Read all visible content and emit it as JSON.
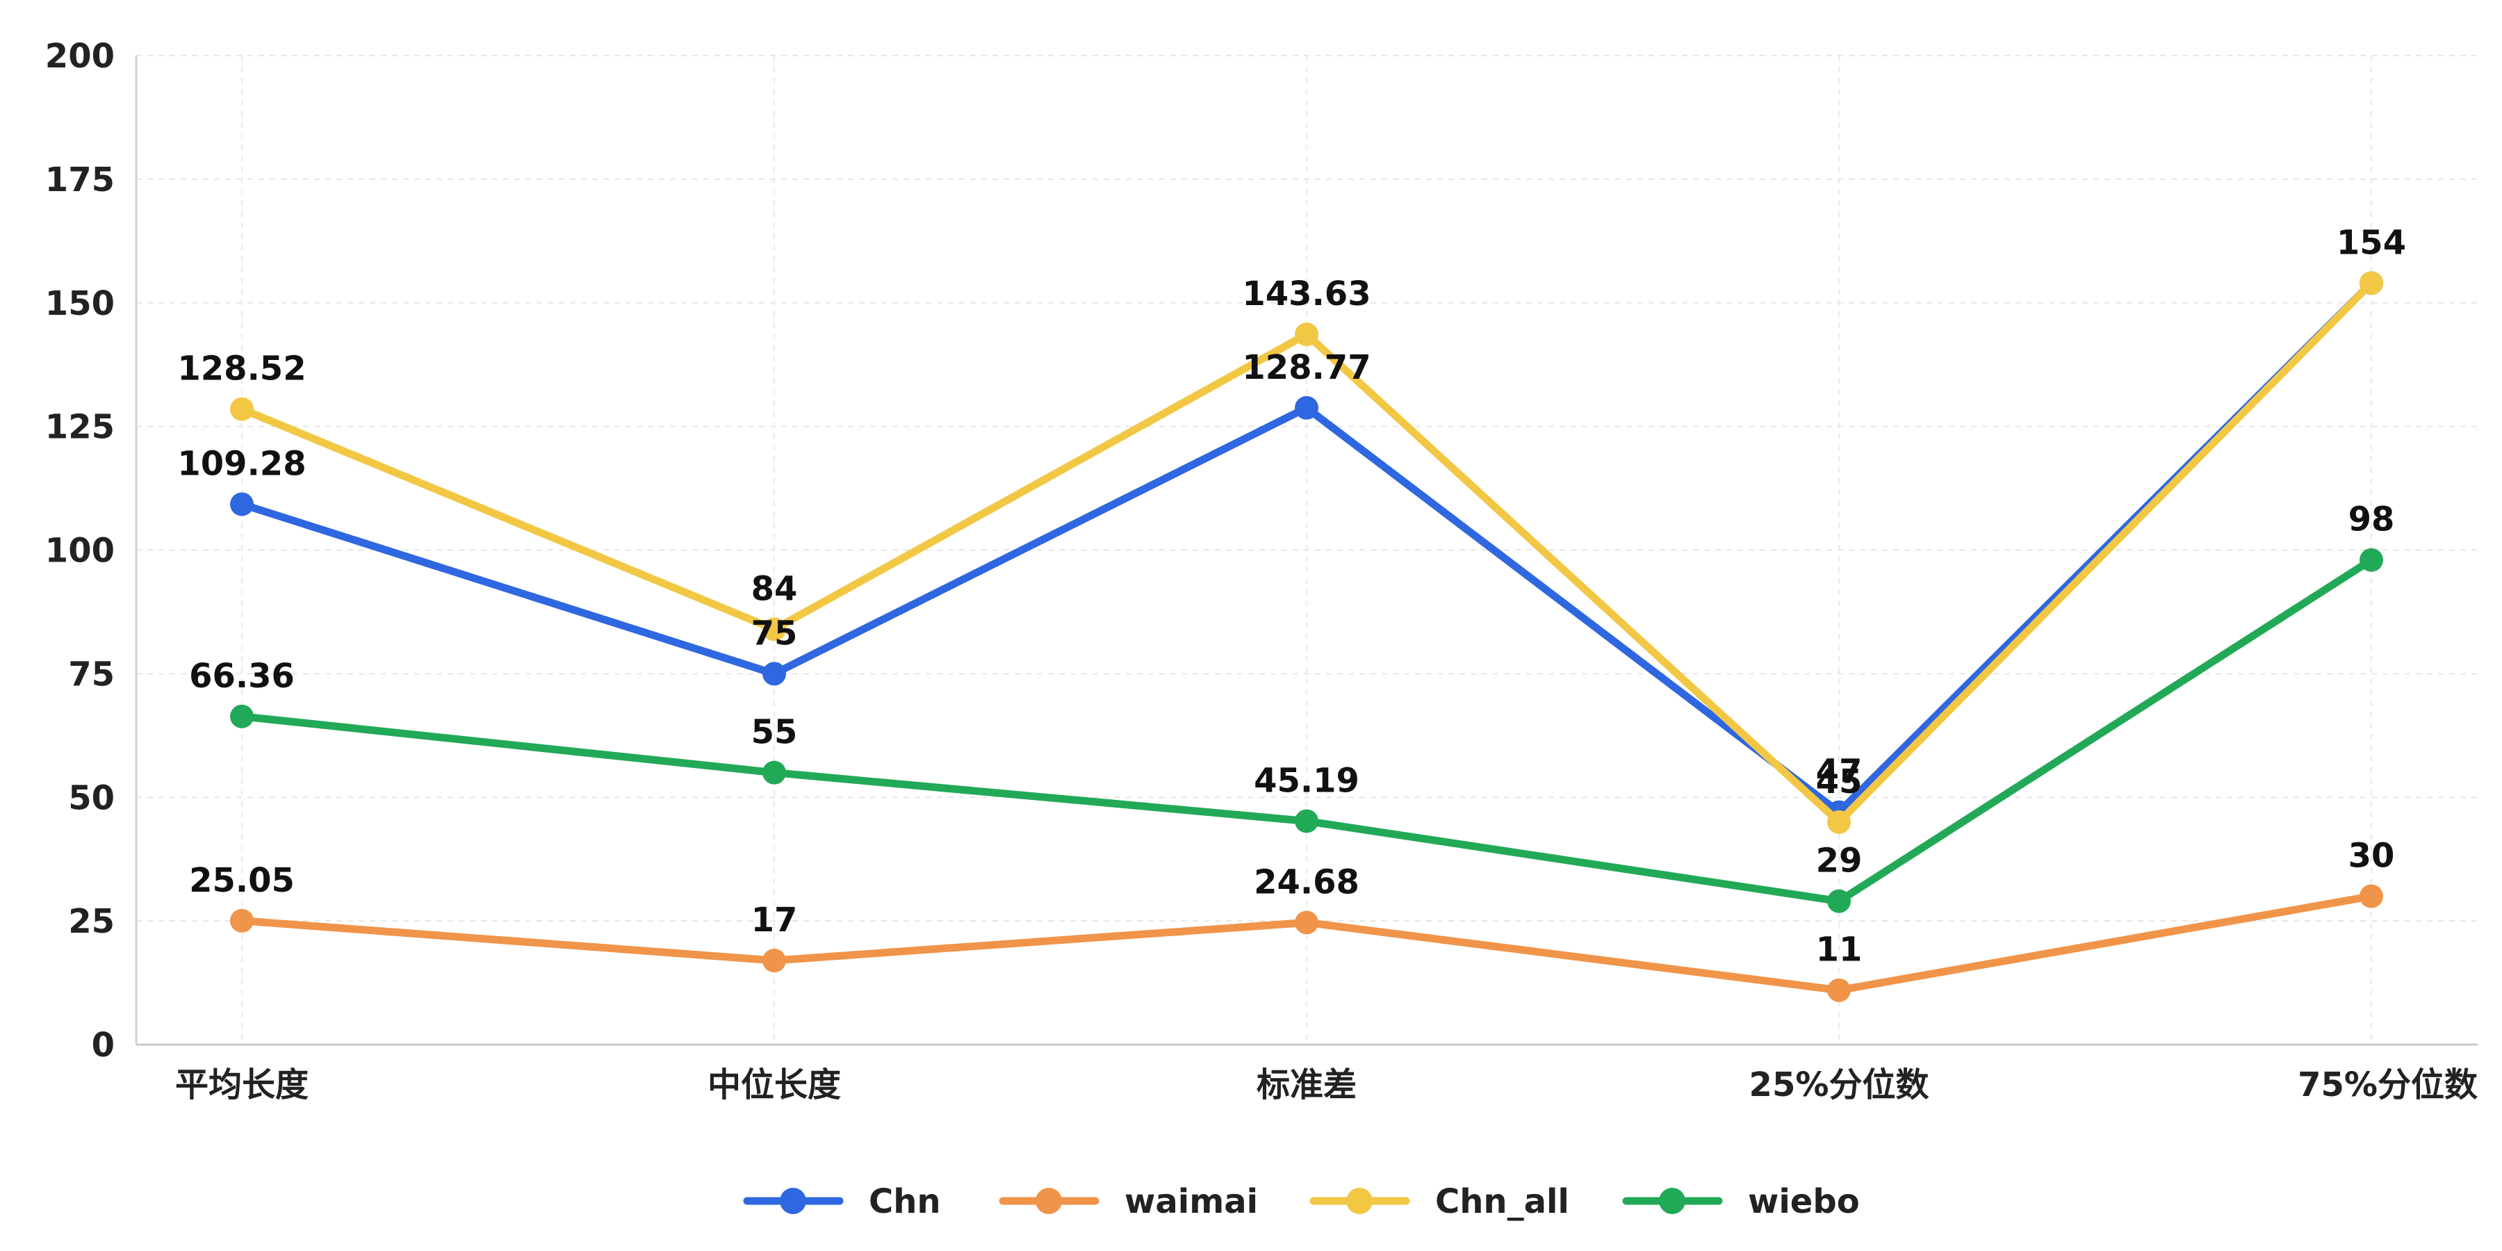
{
  "chart_data": {
    "type": "line",
    "title": "",
    "xlabel": "",
    "ylabel": "",
    "categories": [
      "平均长度",
      "中位长度",
      "标准差",
      "25%分位数",
      "75%分位数"
    ],
    "ylim": [
      0,
      200
    ],
    "yticks": [
      0,
      25,
      50,
      75,
      100,
      125,
      150,
      175,
      200
    ],
    "grid": true,
    "legend_position": "bottom-center",
    "series": [
      {
        "name": "Chn",
        "color": "#2f67e0",
        "values": [
          109.28,
          75,
          128.77,
          47,
          154
        ],
        "labels": [
          "109.28",
          "75",
          "128.77",
          "47",
          ""
        ]
      },
      {
        "name": "waimai",
        "color": "#f0944a",
        "values": [
          25.05,
          17,
          24.68,
          11,
          30
        ],
        "labels": [
          "25.05",
          "17",
          "24.68",
          "11",
          "30"
        ]
      },
      {
        "name": "Chn_all",
        "color": "#f2c744",
        "values": [
          128.52,
          84,
          143.63,
          45,
          154
        ],
        "labels": [
          "128.52",
          "84",
          "143.63",
          "45",
          "154"
        ]
      },
      {
        "name": "wiebo",
        "color": "#22a957",
        "values": [
          66.36,
          55,
          45.19,
          29,
          98
        ],
        "labels": [
          "66.36",
          "55",
          "45.19",
          "29",
          "98"
        ]
      }
    ]
  }
}
